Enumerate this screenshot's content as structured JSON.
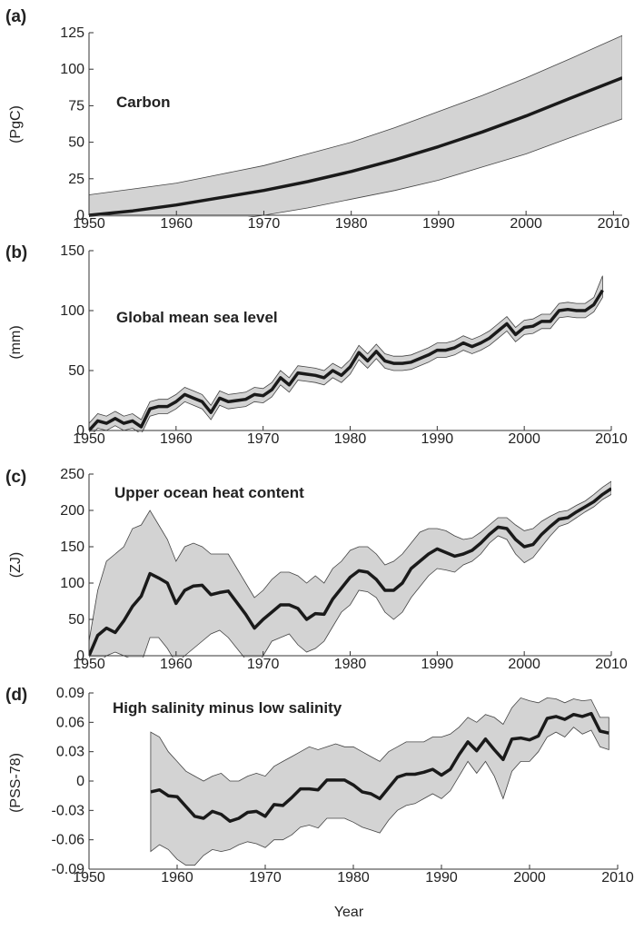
{
  "chart_data": [
    {
      "type": "line",
      "panel_label": "(a)",
      "title": "Carbon",
      "ylabel": "(PgC)",
      "xlabel": "",
      "xlim": [
        1950,
        2011
      ],
      "ylim": [
        0,
        125
      ],
      "xticks": [
        1950,
        1960,
        1970,
        1980,
        1990,
        2000,
        2010
      ],
      "yticks": [
        0,
        25,
        50,
        75,
        100,
        125
      ],
      "ytick_labels": [
        "0",
        "25",
        "50",
        "75",
        "100",
        "125"
      ],
      "grid": false,
      "x": [
        1950,
        1955,
        1960,
        1965,
        1970,
        1975,
        1980,
        1985,
        1990,
        1995,
        2000,
        2005,
        2011
      ],
      "series": [
        {
          "values": [
            0,
            3,
            7,
            12,
            17,
            23,
            30,
            38,
            47,
            57,
            68,
            80,
            94
          ]
        }
      ],
      "band_lower": [
        -15,
        -12,
        -8,
        -4,
        0,
        5,
        11,
        17,
        24,
        33,
        42,
        53,
        66
      ],
      "band_upper": [
        14,
        18,
        22,
        28,
        34,
        42,
        50,
        60,
        71,
        82,
        94,
        107,
        123
      ]
    },
    {
      "type": "line",
      "panel_label": "(b)",
      "title": "Global mean sea level",
      "ylabel": "(mm)",
      "xlabel": "",
      "xlim": [
        1950,
        2010
      ],
      "ylim": [
        0,
        150
      ],
      "xticks": [
        1950,
        1960,
        1970,
        1980,
        1990,
        2000,
        2010
      ],
      "yticks": [
        0,
        50,
        100,
        150
      ],
      "ytick_labels": [
        "0",
        "50",
        "100",
        "150"
      ],
      "grid": false,
      "x": [
        1950,
        1951,
        1952,
        1953,
        1954,
        1955,
        1956,
        1957,
        1958,
        1959,
        1960,
        1961,
        1962,
        1963,
        1964,
        1965,
        1966,
        1967,
        1968,
        1969,
        1970,
        1971,
        1972,
        1973,
        1974,
        1975,
        1976,
        1977,
        1978,
        1979,
        1980,
        1981,
        1982,
        1983,
        1984,
        1985,
        1986,
        1987,
        1988,
        1989,
        1990,
        1991,
        1992,
        1993,
        1994,
        1995,
        1996,
        1997,
        1998,
        1999,
        2000,
        2001,
        2002,
        2003,
        2004,
        2005,
        2006,
        2007,
        2008,
        2009
      ],
      "series": [
        {
          "values": [
            0,
            8,
            6,
            10,
            6,
            8,
            3,
            18,
            20,
            20,
            24,
            30,
            27,
            24,
            15,
            27,
            24,
            25,
            26,
            30,
            29,
            34,
            44,
            38,
            48,
            47,
            46,
            44,
            50,
            46,
            53,
            65,
            58,
            66,
            58,
            56,
            56,
            57,
            60,
            63,
            67,
            67,
            69,
            73,
            70,
            73,
            77,
            83,
            89,
            80,
            86,
            87,
            91,
            91,
            100,
            101,
            100,
            100,
            105,
            117
          ]
        }
      ],
      "band_lower": [
        -6,
        2,
        0,
        4,
        0,
        2,
        -3,
        12,
        14,
        14,
        18,
        24,
        21,
        18,
        9,
        21,
        18,
        19,
        20,
        24,
        23,
        28,
        38,
        32,
        42,
        41,
        40,
        38,
        44,
        40,
        47,
        59,
        52,
        60,
        52,
        50,
        50,
        51,
        54,
        57,
        61,
        61,
        63,
        67,
        64,
        67,
        71,
        77,
        83,
        74,
        80,
        81,
        85,
        85,
        94,
        95,
        94,
        94,
        99,
        111
      ],
      "band_upper": [
        6,
        14,
        12,
        16,
        12,
        14,
        9,
        24,
        26,
        26,
        30,
        36,
        33,
        30,
        21,
        33,
        30,
        31,
        32,
        36,
        35,
        40,
        50,
        44,
        54,
        53,
        52,
        50,
        56,
        52,
        59,
        71,
        64,
        72,
        64,
        62,
        62,
        63,
        66,
        69,
        73,
        73,
        75,
        79,
        76,
        79,
        83,
        89,
        95,
        86,
        92,
        93,
        97,
        97,
        106,
        107,
        106,
        106,
        111,
        129
      ]
    },
    {
      "type": "line",
      "panel_label": "(c)",
      "title": "Upper ocean heat content",
      "ylabel": "(ZJ)",
      "xlabel": "",
      "xlim": [
        1950,
        2010
      ],
      "ylim": [
        0,
        250
      ],
      "xticks": [
        1950,
        1960,
        1970,
        1980,
        1990,
        2000,
        2010
      ],
      "yticks": [
        0,
        50,
        100,
        150,
        200,
        250
      ],
      "ytick_labels": [
        "0",
        "50",
        "100",
        "150",
        "200",
        "250"
      ],
      "grid": false,
      "x": [
        1950,
        1951,
        1952,
        1953,
        1954,
        1955,
        1956,
        1957,
        1958,
        1959,
        1960,
        1961,
        1962,
        1963,
        1964,
        1965,
        1966,
        1967,
        1968,
        1969,
        1970,
        1971,
        1972,
        1973,
        1974,
        1975,
        1976,
        1977,
        1978,
        1979,
        1980,
        1981,
        1982,
        1983,
        1984,
        1985,
        1986,
        1987,
        1988,
        1989,
        1990,
        1991,
        1992,
        1993,
        1994,
        1995,
        1996,
        1997,
        1998,
        1999,
        2000,
        2001,
        2002,
        2003,
        2004,
        2005,
        2006,
        2007,
        2008,
        2009,
        2010
      ],
      "series": [
        {
          "values": [
            0,
            28,
            38,
            32,
            48,
            68,
            82,
            113,
            107,
            100,
            72,
            90,
            96,
            97,
            84,
            87,
            89,
            73,
            57,
            38,
            50,
            60,
            70,
            70,
            65,
            50,
            58,
            57,
            78,
            93,
            108,
            117,
            115,
            105,
            90,
            90,
            100,
            120,
            130,
            140,
            147,
            142,
            137,
            140,
            145,
            155,
            167,
            177,
            175,
            160,
            150,
            153,
            167,
            178,
            188,
            190,
            198,
            205,
            212,
            222,
            230
          ]
        }
      ],
      "band_lower": [
        -20,
        -10,
        0,
        5,
        0,
        -5,
        -10,
        25,
        25,
        10,
        -10,
        0,
        10,
        20,
        30,
        35,
        25,
        10,
        -5,
        -20,
        0,
        20,
        25,
        30,
        15,
        5,
        10,
        20,
        40,
        60,
        70,
        90,
        88,
        80,
        60,
        50,
        60,
        80,
        95,
        110,
        120,
        118,
        115,
        125,
        130,
        140,
        155,
        165,
        160,
        140,
        128,
        135,
        150,
        165,
        178,
        182,
        190,
        198,
        205,
        215,
        222
      ],
      "band_upper": [
        20,
        90,
        130,
        140,
        150,
        175,
        180,
        200,
        180,
        160,
        130,
        150,
        155,
        150,
        140,
        140,
        140,
        120,
        100,
        80,
        90,
        105,
        115,
        115,
        110,
        100,
        110,
        100,
        120,
        130,
        145,
        150,
        150,
        140,
        125,
        130,
        140,
        155,
        170,
        175,
        175,
        172,
        165,
        160,
        162,
        170,
        180,
        190,
        190,
        180,
        172,
        175,
        185,
        192,
        198,
        200,
        207,
        213,
        222,
        232,
        240
      ]
    },
    {
      "type": "line",
      "panel_label": "(d)",
      "title": "High salinity minus low salinity",
      "ylabel": "(PSS-78)",
      "xlabel": "Year",
      "xlim": [
        1950,
        2010
      ],
      "ylim": [
        -0.09,
        0.09
      ],
      "xticks": [
        1950,
        1960,
        1970,
        1980,
        1990,
        2000,
        2010
      ],
      "yticks": [
        -0.09,
        -0.06,
        -0.03,
        0,
        0.03,
        0.06,
        0.09
      ],
      "ytick_labels": [
        "-0.09",
        "-0.06",
        "-0.03",
        "0",
        "0.03",
        "0.06",
        "0.09"
      ],
      "grid": false,
      "x": [
        1957,
        1958,
        1959,
        1960,
        1961,
        1962,
        1963,
        1964,
        1965,
        1966,
        1967,
        1968,
        1969,
        1970,
        1971,
        1972,
        1973,
        1974,
        1975,
        1976,
        1977,
        1978,
        1979,
        1980,
        1981,
        1982,
        1983,
        1984,
        1985,
        1986,
        1987,
        1988,
        1989,
        1990,
        1991,
        1992,
        1993,
        1994,
        1995,
        1996,
        1997,
        1998,
        1999,
        2000,
        2001,
        2002,
        2003,
        2004,
        2005,
        2006,
        2007,
        2008,
        2009
      ],
      "series": [
        {
          "values": [
            -0.011,
            -0.009,
            -0.015,
            -0.016,
            -0.026,
            -0.036,
            -0.038,
            -0.031,
            -0.034,
            -0.041,
            -0.038,
            -0.032,
            -0.031,
            -0.036,
            -0.024,
            -0.025,
            -0.017,
            -0.008,
            -0.008,
            -0.009,
            0.001,
            0.001,
            0.001,
            -0.004,
            -0.011,
            -0.013,
            -0.018,
            -0.007,
            0.004,
            0.007,
            0.007,
            0.009,
            0.012,
            0.006,
            0.012,
            0.027,
            0.04,
            0.031,
            0.043,
            0.032,
            0.022,
            0.043,
            0.044,
            0.042,
            0.046,
            0.064,
            0.066,
            0.063,
            0.068,
            0.066,
            0.069,
            0.051,
            0.049
          ]
        }
      ],
      "band_lower": [
        -0.072,
        -0.065,
        -0.07,
        -0.08,
        -0.086,
        -0.086,
        -0.076,
        -0.07,
        -0.072,
        -0.07,
        -0.065,
        -0.062,
        -0.064,
        -0.068,
        -0.06,
        -0.06,
        -0.055,
        -0.047,
        -0.045,
        -0.048,
        -0.038,
        -0.038,
        -0.038,
        -0.042,
        -0.047,
        -0.05,
        -0.053,
        -0.04,
        -0.03,
        -0.025,
        -0.023,
        -0.018,
        -0.013,
        -0.018,
        -0.01,
        0.005,
        0.02,
        0.008,
        0.02,
        0.005,
        -0.018,
        0.01,
        0.02,
        0.02,
        0.03,
        0.045,
        0.05,
        0.045,
        0.055,
        0.048,
        0.052,
        0.035,
        0.032
      ],
      "band_upper": [
        0.05,
        0.045,
        0.03,
        0.02,
        0.01,
        0.005,
        0.0,
        0.005,
        0.008,
        0.0,
        0.0,
        0.005,
        0.008,
        0.005,
        0.015,
        0.02,
        0.025,
        0.03,
        0.035,
        0.032,
        0.035,
        0.038,
        0.035,
        0.035,
        0.03,
        0.025,
        0.02,
        0.03,
        0.035,
        0.04,
        0.04,
        0.04,
        0.045,
        0.045,
        0.048,
        0.055,
        0.065,
        0.06,
        0.068,
        0.065,
        0.058,
        0.075,
        0.085,
        0.082,
        0.08,
        0.085,
        0.084,
        0.08,
        0.084,
        0.082,
        0.083,
        0.065,
        0.065
      ]
    }
  ]
}
